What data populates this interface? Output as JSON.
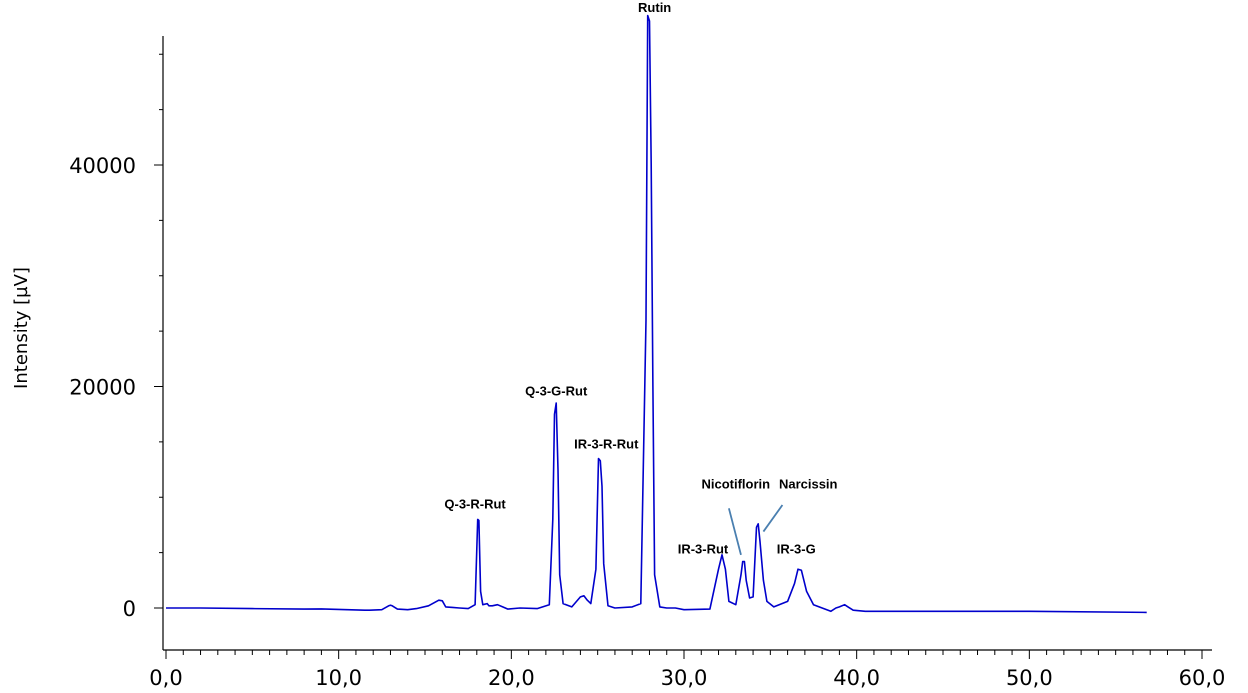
{
  "chart_data": {
    "type": "line",
    "title": "",
    "xlabel": "",
    "ylabel": "Intensity [µV]",
    "xlim": [
      -0.3,
      60.5
    ],
    "ylim": [
      -3500,
      52000
    ],
    "x_ticks": [
      {
        "v": 0,
        "label": "0,0"
      },
      {
        "v": 10,
        "label": "10,0"
      },
      {
        "v": 20,
        "label": "20,0"
      },
      {
        "v": 30,
        "label": "30,0"
      },
      {
        "v": 40,
        "label": "40,0"
      },
      {
        "v": 50,
        "label": "50,0"
      },
      {
        "v": 60,
        "label": "60,0"
      }
    ],
    "x_minor_step": 1,
    "y_ticks": [
      {
        "v": 0,
        "label": "0"
      },
      {
        "v": 20000,
        "label": "20000"
      },
      {
        "v": 40000,
        "label": "40000"
      }
    ],
    "y_minor_step": 5000,
    "grid": false,
    "line_color": "#0000cc",
    "leader_color": "#4a7fb0",
    "series": [
      {
        "x": [
          0,
          2,
          5,
          8,
          9,
          11.5,
          11.8,
          12.5,
          12.9,
          13.0,
          13.1,
          13.4,
          14.0,
          14.5,
          15.2,
          15.8,
          16.0,
          16.2,
          16.6,
          17.0,
          17.5,
          17.9,
          18.05,
          18.12,
          18.22,
          18.35,
          18.6,
          18.7,
          18.9,
          19.2,
          19.5,
          19.8,
          20.5,
          21.5,
          22.2,
          22.4,
          22.5,
          22.6,
          22.7,
          22.8,
          23.0,
          23.5,
          24.0,
          24.2,
          24.4,
          24.6,
          24.9,
          25.05,
          25.15,
          25.25,
          25.35,
          25.6,
          26.0,
          27.0,
          27.5,
          27.8,
          27.9,
          28.0,
          28.1,
          28.2,
          28.3,
          28.6,
          29.0,
          29.5,
          30.0,
          31.5,
          32.0,
          32.2,
          32.4,
          32.6,
          33.0,
          33.3,
          33.4,
          33.5,
          33.6,
          33.8,
          34.0,
          34.2,
          34.3,
          34.4,
          34.6,
          34.8,
          35.2,
          36.0,
          36.4,
          36.6,
          36.8,
          37.1,
          37.5,
          38.5,
          38.8,
          39.0,
          39.3,
          39.5,
          39.8,
          40.5,
          45,
          50,
          56.8
        ],
        "y": [
          0,
          0,
          -50,
          -100,
          -80,
          -200,
          -200,
          -150,
          200,
          250,
          200,
          -100,
          -150,
          -50,
          200,
          700,
          650,
          100,
          50,
          0,
          -50,
          300,
          8000,
          7900,
          1500,
          300,
          400,
          200,
          200,
          300,
          100,
          -100,
          0,
          -50,
          300,
          8000,
          17500,
          18500,
          12500,
          3000,
          400,
          100,
          1000,
          1100,
          700,
          400,
          3500,
          13500,
          13300,
          11000,
          4000,
          200,
          0,
          100,
          400,
          26000,
          53500,
          53000,
          40000,
          20000,
          3000,
          100,
          0,
          0,
          -150,
          -100,
          3500,
          4800,
          3500,
          600,
          300,
          3000,
          4200,
          4200,
          2500,
          900,
          1000,
          7300,
          7600,
          6000,
          2500,
          600,
          100,
          600,
          2200,
          3500,
          3400,
          1500,
          300,
          -300,
          0,
          100,
          300,
          100,
          -200,
          -300,
          -300,
          -300,
          -400
        ]
      }
    ],
    "annotations": [
      {
        "text": "Rutin",
        "x": 28.3,
        "y": 53800,
        "anchor": "middle"
      },
      {
        "text": "Q-3-G-Rut",
        "x": 22.6,
        "y": 19200,
        "anchor": "middle"
      },
      {
        "text": "IR-3-R-Rut",
        "x": 25.5,
        "y": 14400,
        "anchor": "middle"
      },
      {
        "text": "Q-3-R-Rut",
        "x": 17.9,
        "y": 9000,
        "anchor": "middle"
      },
      {
        "text": "Nicotiflorin",
        "x": 33.0,
        "y": 10800,
        "anchor": "middle"
      },
      {
        "text": "Narcissin",
        "x": 35.5,
        "y": 10800,
        "anchor": "start"
      },
      {
        "text": "IR-3-Rut",
        "x": 31.1,
        "y": 4900,
        "anchor": "middle"
      },
      {
        "text": "IR-3-G",
        "x": 36.5,
        "y": 4900,
        "anchor": "middle"
      }
    ],
    "leader_lines": [
      {
        "from": [
          32.6,
          9000
        ],
        "to": [
          33.3,
          4800
        ]
      },
      {
        "from": [
          35.7,
          9300
        ],
        "to": [
          34.6,
          6900
        ]
      }
    ]
  }
}
